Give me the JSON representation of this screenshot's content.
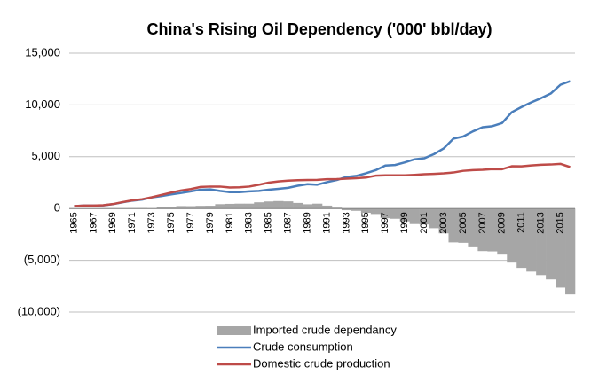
{
  "chart_data": {
    "type": "combo",
    "title": "China's Rising Oil Dependency ('000' bbl/day)",
    "categories": [
      "1965",
      null,
      "1967",
      null,
      "1969",
      null,
      "1971",
      null,
      "1973",
      null,
      "1975",
      null,
      "1977",
      null,
      "1979",
      null,
      "1981",
      null,
      "1983",
      null,
      "1985",
      null,
      "1987",
      null,
      "1989",
      null,
      "1991",
      null,
      "1993",
      null,
      "1995",
      null,
      "1997",
      null,
      "1999",
      null,
      "2001",
      null,
      "2003",
      null,
      "2005",
      null,
      "2007",
      null,
      "2009",
      null,
      "2011",
      null,
      "2013",
      null,
      "2015",
      null
    ],
    "ylim": [
      -10000,
      15000
    ],
    "yticks": [
      {
        "value": -10000,
        "label": "(10,000)"
      },
      {
        "value": -5000,
        "label": "(5,000)"
      },
      0,
      {
        "value": 5000,
        "label": "5,000"
      },
      {
        "value": 10000,
        "label": "10,000"
      },
      {
        "value": 15000,
        "label": "15,000"
      }
    ],
    "grid": true,
    "legend": "bottom",
    "series": [
      {
        "name": "Imported crude dependancy",
        "type": "bar",
        "color": "#a6a6a6",
        "values": [
          10,
          10,
          0,
          10,
          10,
          20,
          30,
          40,
          10,
          120,
          180,
          240,
          230,
          260,
          270,
          420,
          450,
          470,
          470,
          600,
          680,
          720,
          690,
          540,
          410,
          470,
          280,
          90,
          -160,
          -220,
          -410,
          -530,
          -940,
          -990,
          -1240,
          -1500,
          -1540,
          -1900,
          -2400,
          -3270,
          -3310,
          -3740,
          -4110,
          -4140,
          -4450,
          -5220,
          -5730,
          -6090,
          -6430,
          -6850,
          -7640,
          -8300
        ]
      },
      {
        "name": "Crude consumption",
        "type": "line",
        "color": "#4a7ebb",
        "values": [
          220,
          280,
          280,
          310,
          420,
          600,
          760,
          860,
          1080,
          1200,
          1360,
          1500,
          1650,
          1820,
          1850,
          1700,
          1580,
          1580,
          1650,
          1700,
          1820,
          1900,
          2000,
          2200,
          2350,
          2300,
          2550,
          2750,
          3050,
          3150,
          3400,
          3700,
          4150,
          4200,
          4450,
          4750,
          4850,
          5250,
          5800,
          6750,
          6950,
          7450,
          7850,
          7950,
          8250,
          9300,
          9800,
          10250,
          10650,
          11100,
          11950,
          12300
        ]
      },
      {
        "name": "Domestic crude production",
        "type": "line",
        "color": "#be4b48",
        "values": [
          230,
          290,
          280,
          320,
          430,
          620,
          790,
          900,
          1090,
          1320,
          1540,
          1740,
          1880,
          2080,
          2120,
          2120,
          2030,
          2050,
          2120,
          2300,
          2500,
          2620,
          2690,
          2740,
          2760,
          2770,
          2830,
          2840,
          2890,
          2930,
          2990,
          3170,
          3210,
          3210,
          3210,
          3250,
          3310,
          3350,
          3400,
          3480,
          3640,
          3710,
          3740,
          3810,
          3800,
          4080,
          4070,
          4160,
          4220,
          4250,
          4310,
          4000
        ]
      }
    ]
  }
}
